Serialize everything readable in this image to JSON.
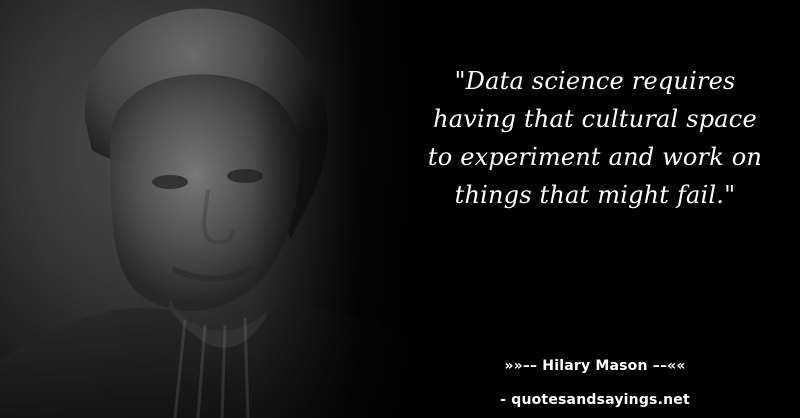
{
  "quote": {
    "text": "\"Data science requires having that cultural space to experiment and work on things that might fail.\""
  },
  "attribution": {
    "author_line": "»»–– Hilary Mason ––««",
    "source_line": "- quotesandsayings.net"
  },
  "colors": {
    "background": "#000000",
    "text": "#ffffff",
    "portrait_tone": "#5a5a5a"
  },
  "icons": {
    "portrait": "portrait-image"
  }
}
